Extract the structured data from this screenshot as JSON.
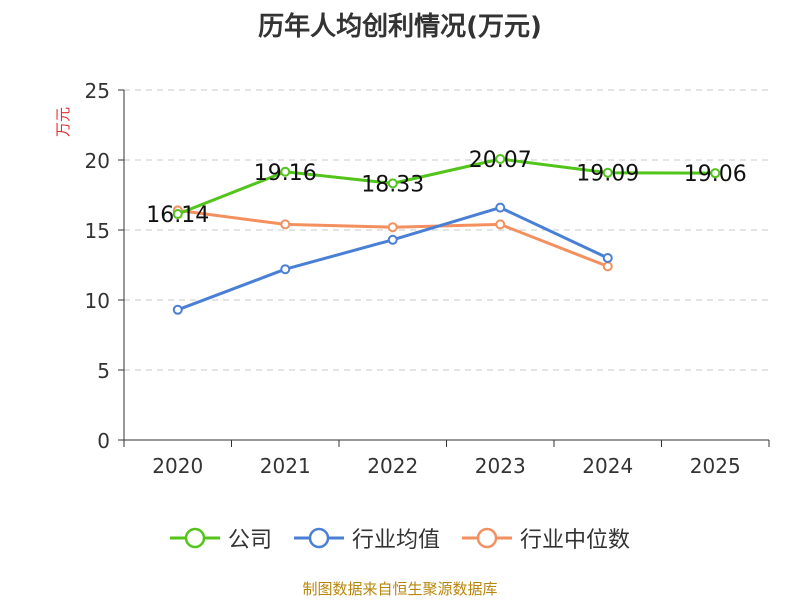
{
  "chart_data": {
    "type": "line",
    "title": "历年人均创利情况(万元)",
    "ylabel": "万元",
    "xlabel": "",
    "categories": [
      "2020",
      "2021",
      "2022",
      "2023",
      "2024",
      "2025"
    ],
    "ylim": [
      0,
      25
    ],
    "yticks": [
      "0",
      "5",
      "10",
      "15",
      "20",
      "25"
    ],
    "grid": true,
    "legend_position": "bottom",
    "series": [
      {
        "name": "公司",
        "color": "#52c41a",
        "values": [
          16.14,
          19.16,
          18.33,
          20.07,
          19.09,
          19.06
        ],
        "labels": [
          "16.14",
          "19.16",
          "18.33",
          "20.07",
          "19.09",
          "19.06"
        ]
      },
      {
        "name": "行业均值",
        "color": "#4a7fd6",
        "values": [
          9.3,
          12.2,
          14.3,
          16.6,
          13.0,
          null
        ]
      },
      {
        "name": "行业中位数",
        "color": "#f4905f",
        "values": [
          16.4,
          15.4,
          15.2,
          15.4,
          12.4,
          null
        ]
      }
    ]
  },
  "source": "制图数据来自恒生聚源数据库"
}
